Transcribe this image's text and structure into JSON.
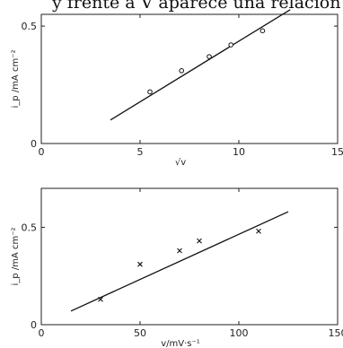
{
  "header_text": "y frente a V aparece una relación l",
  "chart_data": [
    {
      "type": "scatter",
      "xlabel": "√v",
      "ylabel": "i_p /mA cm⁻²",
      "xlim": [
        0,
        15
      ],
      "ylim": [
        0,
        0.55
      ],
      "x_ticks": [
        0,
        5,
        10,
        15
      ],
      "y_ticks": [
        0,
        0.5
      ],
      "x_tick_labels": [
        "0",
        "5",
        "10",
        "15"
      ],
      "y_tick_labels": [
        "0",
        "0.5"
      ],
      "marker": "circle",
      "points": [
        {
          "x": 5.5,
          "y": 0.22
        },
        {
          "x": 7.1,
          "y": 0.31
        },
        {
          "x": 8.5,
          "y": 0.37
        },
        {
          "x": 9.6,
          "y": 0.42
        },
        {
          "x": 11.2,
          "y": 0.48
        }
      ],
      "fit_line": {
        "x": [
          3.5,
          12.6
        ],
        "y": [
          0.1,
          0.57
        ]
      }
    },
    {
      "type": "scatter",
      "xlabel": "v/mV·s⁻¹",
      "ylabel": "i_p /mA cm⁻²",
      "xlim": [
        0,
        150
      ],
      "ylim": [
        0,
        0.7
      ],
      "x_ticks": [
        0,
        50,
        100,
        150
      ],
      "y_ticks": [
        0,
        0.5
      ],
      "x_tick_labels": [
        "0",
        "50",
        "100",
        "150"
      ],
      "y_tick_labels": [
        "0",
        "0.5"
      ],
      "marker": "x",
      "points": [
        {
          "x": 30,
          "y": 0.13
        },
        {
          "x": 50,
          "y": 0.31
        },
        {
          "x": 70,
          "y": 0.38
        },
        {
          "x": 80,
          "y": 0.43
        },
        {
          "x": 110,
          "y": 0.48
        }
      ],
      "fit_line": {
        "x": [
          15,
          125
        ],
        "y": [
          0.07,
          0.58
        ]
      }
    }
  ]
}
